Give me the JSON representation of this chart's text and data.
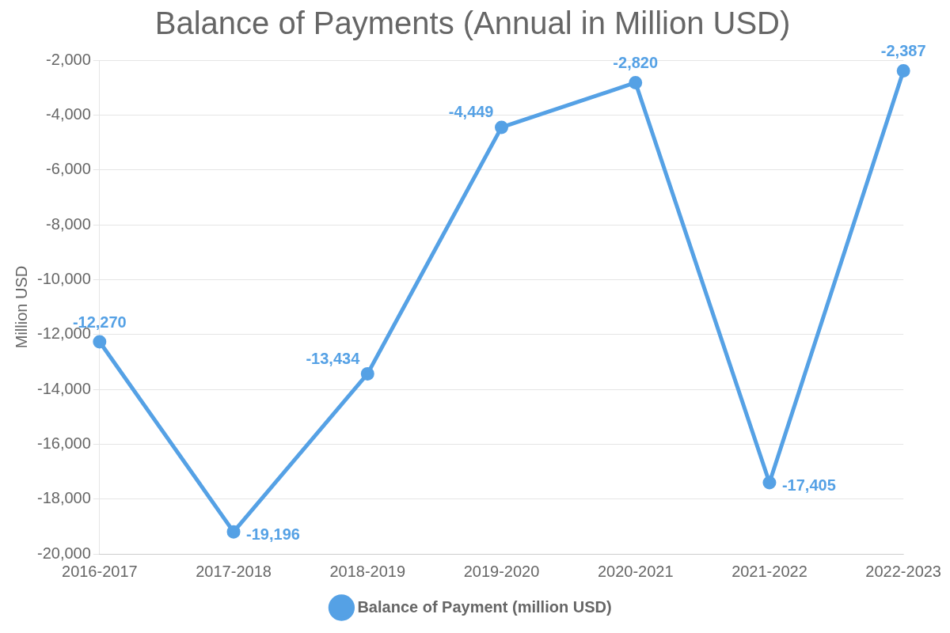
{
  "chart_data": {
    "type": "line",
    "title": "Balance of Payments (Annual in Million USD)",
    "ylabel": "Million USD",
    "categories": [
      "2016-2017",
      "2017-2018",
      "2018-2019",
      "2019-2020",
      "2020-2021",
      "2021-2022",
      "2022-2023"
    ],
    "series": [
      {
        "name": "Balance of Payment (million USD)",
        "color": "#55a1e5",
        "values": [
          -12270,
          -19196,
          -13434,
          -4449,
          -2820,
          -17405,
          -2387
        ],
        "value_labels": [
          "-12,270",
          "-19,196",
          "-13,434",
          "-4,449",
          "-2,820",
          "-17,405",
          "-2,387"
        ]
      }
    ],
    "ylim": [
      -20000,
      -2000
    ],
    "yticks": [
      {
        "value": -20000,
        "label": "-20,000"
      },
      {
        "value": -18000,
        "label": "-18,000"
      },
      {
        "value": -16000,
        "label": "-16,000"
      },
      {
        "value": -14000,
        "label": "-14,000"
      },
      {
        "value": -12000,
        "label": "-12,000"
      },
      {
        "value": -10000,
        "label": "-10,000"
      },
      {
        "value": -8000,
        "label": "-8,000"
      },
      {
        "value": -6000,
        "label": "-6,000"
      },
      {
        "value": -4000,
        "label": "-4,000"
      },
      {
        "value": -2000,
        "label": "-2,000"
      }
    ],
    "grid": "y",
    "legend": "bottom",
    "marker": "circle",
    "line_style": "solid"
  }
}
